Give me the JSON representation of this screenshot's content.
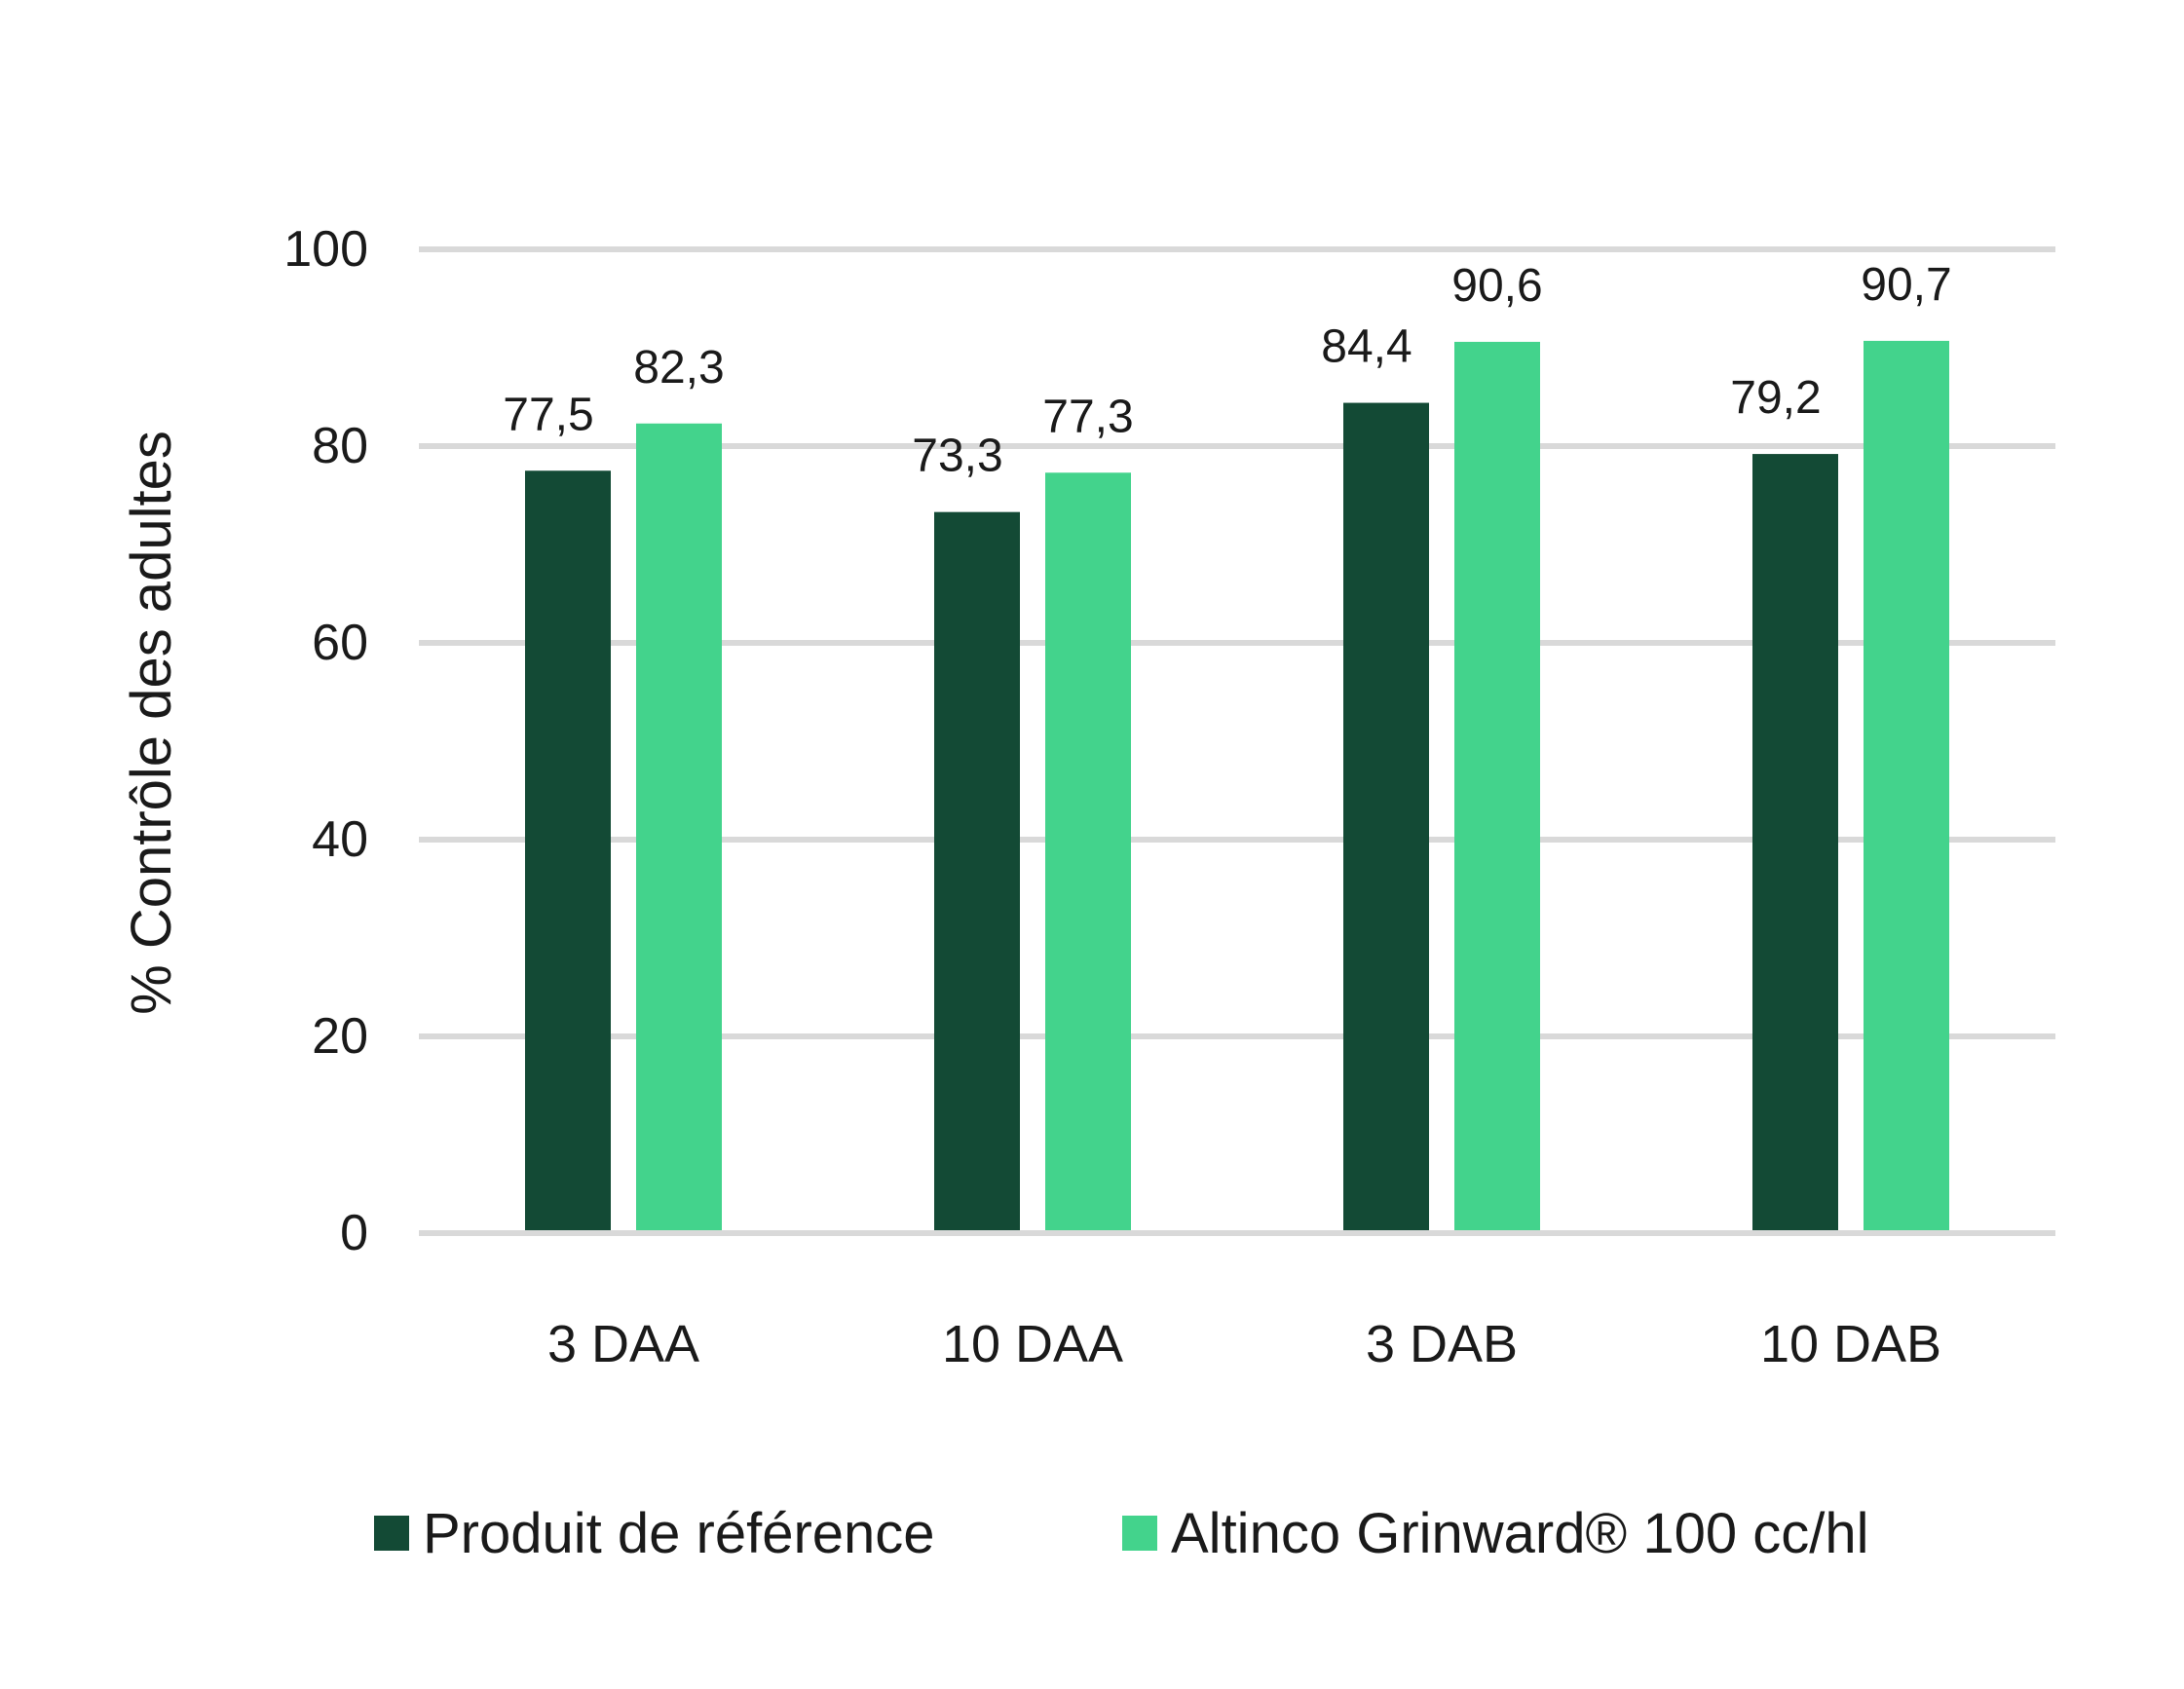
{
  "chart_data": {
    "type": "bar",
    "title": "",
    "xlabel": "",
    "ylabel": "% Contrôle des adultes",
    "ylim": [
      0,
      100
    ],
    "yticks": [
      0,
      20,
      40,
      60,
      80,
      100
    ],
    "grid": true,
    "legend_position": "bottom",
    "categories": [
      "3 DAA",
      "10 DAA",
      "3 DAB",
      "10 DAB"
    ],
    "series": [
      {
        "name": "Produit de référence",
        "color": "#134a35",
        "values": [
          77.5,
          73.3,
          84.4,
          79.2
        ],
        "labels": [
          "77,5",
          "73,3",
          "84,4",
          "79,2"
        ]
      },
      {
        "name": "Altinco Grinward® 100 cc/hl",
        "color": "#43d38c",
        "values": [
          82.3,
          77.3,
          90.6,
          90.7
        ],
        "labels": [
          "82,3",
          "77,3",
          "90,6",
          "90,7"
        ]
      }
    ]
  }
}
